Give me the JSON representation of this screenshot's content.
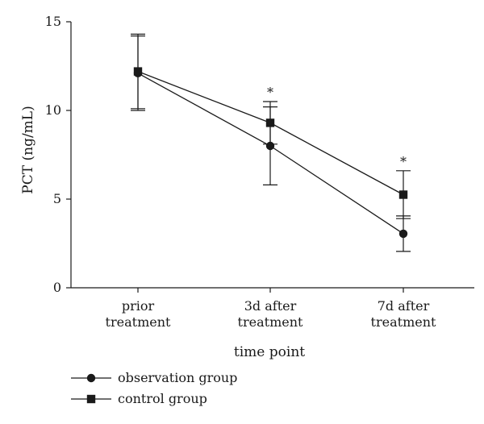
{
  "chart_data": {
    "type": "line",
    "title": "",
    "xlabel": "time point",
    "ylabel": "PCT (ng/mL)",
    "ylim": [
      0,
      15
    ],
    "yticks": [
      0,
      5,
      10,
      15
    ],
    "categories": [
      [
        "prior",
        "treatment"
      ],
      [
        "3d after",
        "treatment"
      ],
      [
        "7d after",
        "treatment"
      ]
    ],
    "grid": false,
    "legend_position": "bottom-left",
    "series": [
      {
        "name": "observation group",
        "marker": "circle",
        "values": [
          12.1,
          8.0,
          3.05
        ],
        "error": [
          2.1,
          2.2,
          1.0
        ]
      },
      {
        "name": "control group",
        "marker": "square",
        "values": [
          12.2,
          9.3,
          5.25
        ],
        "error": [
          2.1,
          1.2,
          1.35
        ]
      }
    ],
    "annotations": [
      {
        "category_index": 1,
        "text": "*"
      },
      {
        "category_index": 2,
        "text": "*"
      }
    ],
    "colors": {
      "line": "#1a1a1a"
    }
  }
}
